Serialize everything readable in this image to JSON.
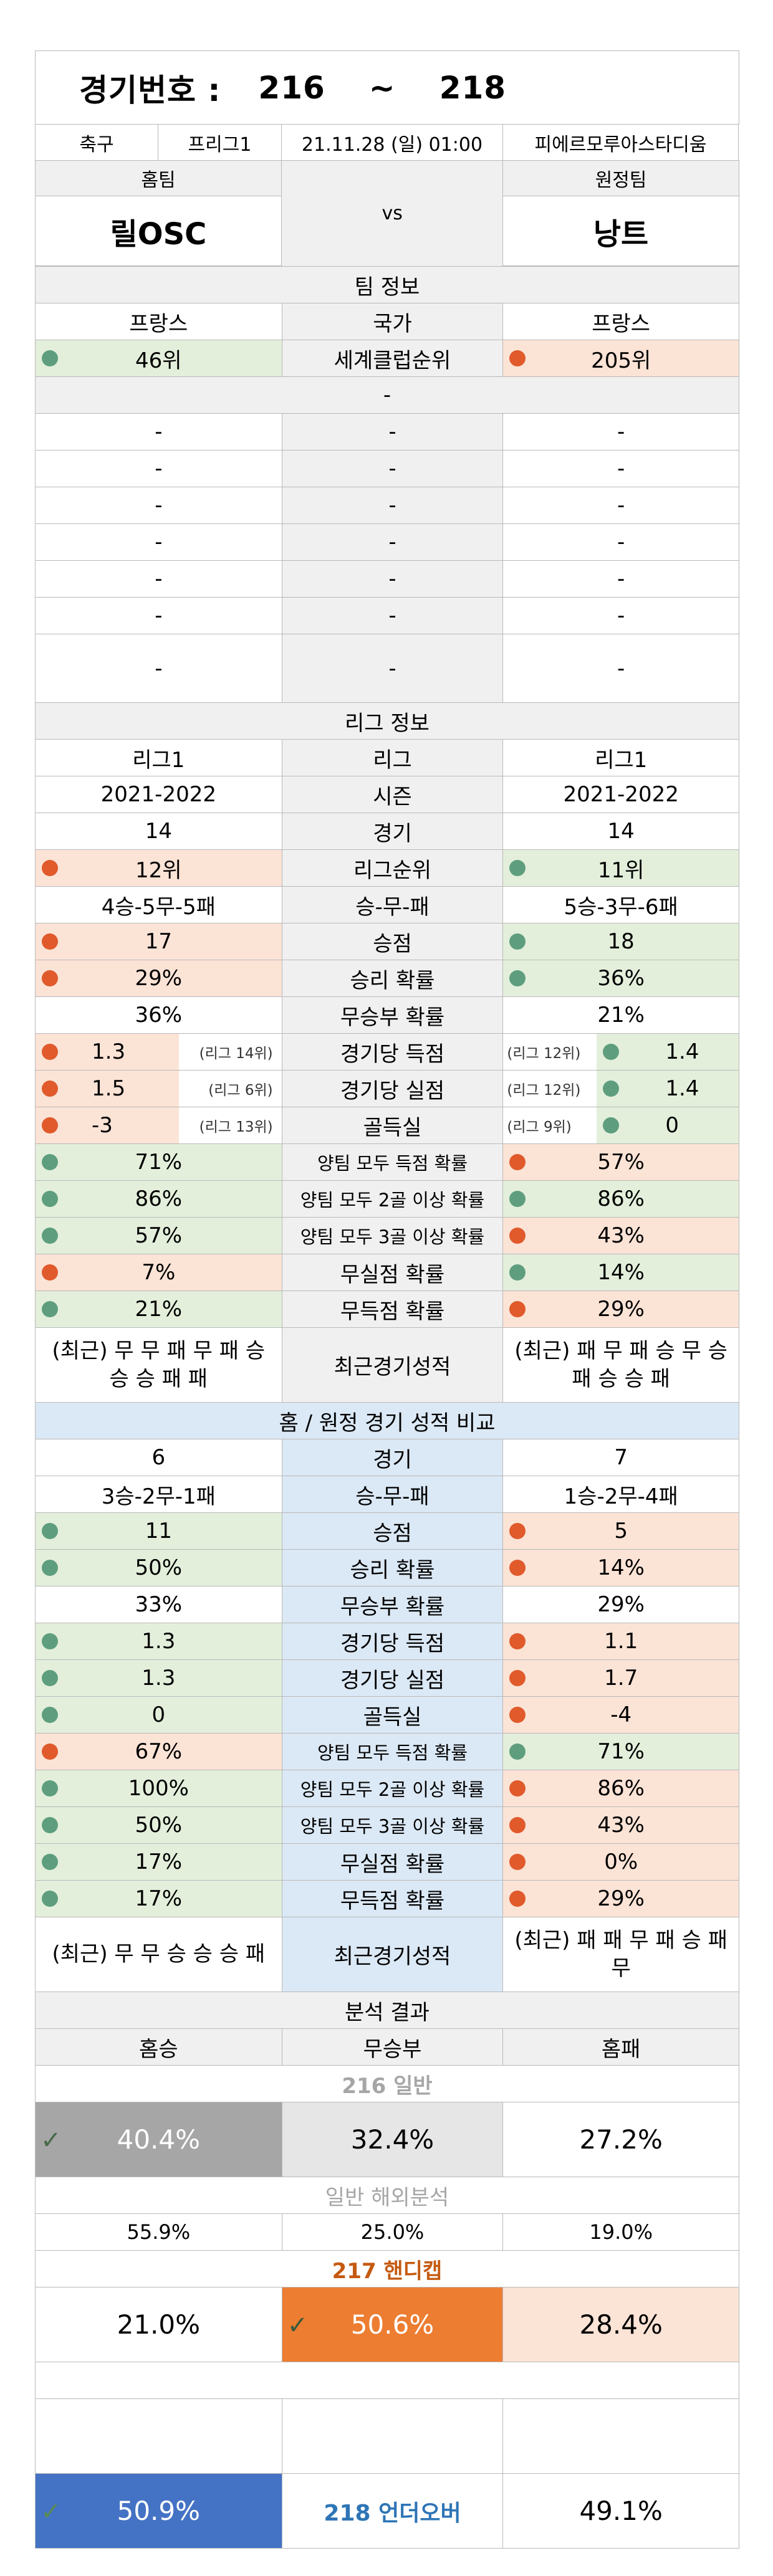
{
  "header": {
    "label": "경기번호 :",
    "from": "216",
    "sep": "~",
    "to": "218"
  },
  "match": {
    "sport": "축구",
    "league": "프리그1",
    "datetime": "21.11.28 (일) 01:00",
    "stadium": "피에르모루아스타디움"
  },
  "teams": {
    "home_label": "홈팀",
    "away_label": "원정팀",
    "home": "릴OSC",
    "vs": "vs",
    "away": "낭트"
  },
  "team_info": {
    "title": "팀 정보",
    "country_label": "국가",
    "home_country": "프랑스",
    "away_country": "프랑스",
    "rank_label": "세계클럽순위",
    "home_rank": "46위",
    "away_rank": "205위",
    "dash": "-"
  },
  "league_info": {
    "title": "리그 정보",
    "league_label": "리그",
    "home_league": "리그1",
    "away_league": "리그1",
    "season_label": "시즌",
    "home_season": "2021-2022",
    "away_season": "2021-2022",
    "games_label": "경기",
    "home_games": "14",
    "away_games": "14",
    "rank_label": "리그순위",
    "home_rank": "12위",
    "away_rank": "11위",
    "wdl_label": "승-무-패",
    "home_wdl": "4승-5무-5패",
    "away_wdl": "5승-3무-6패",
    "points_label": "승점",
    "home_points": "17",
    "away_points": "18",
    "winp_label": "승리 확률",
    "home_winp": "29%",
    "away_winp": "36%",
    "drawp_label": "무승부 확률",
    "home_drawp": "36%",
    "away_drawp": "21%",
    "gf_label": "경기당 득점",
    "home_gf": "1.3",
    "home_gf_rank": "(리그 14위)",
    "away_gf": "1.4",
    "away_gf_rank": "(리그 12위)",
    "ga_label": "경기당 실점",
    "home_ga": "1.5",
    "home_ga_rank": "(리그 6위)",
    "away_ga": "1.4",
    "away_ga_rank": "(리그 12위)",
    "gd_label": "골득실",
    "home_gd": "-3",
    "home_gd_rank": "(리그 13위)",
    "away_gd": "0",
    "away_gd_rank": "(리그 9위)",
    "btts_label": "양팀 모두 득점 확률",
    "home_btts": "71%",
    "away_btts": "57%",
    "btts2_label": "양팀 모두 2골 이상 확률",
    "home_btts2": "86%",
    "away_btts2": "86%",
    "btts3_label": "양팀 모두 3골 이상 확률",
    "home_btts3": "57%",
    "away_btts3": "43%",
    "cs_label": "무실점 확률",
    "home_cs": "7%",
    "away_cs": "14%",
    "fts_label": "무득점 확률",
    "home_fts": "21%",
    "away_fts": "29%",
    "recent_label": "최근경기성적",
    "home_recent": "(최근) 무 무 패 무 패 승 승 승 패 패",
    "away_recent": "(최근) 패 무 패 승 무 승 패 승 승 패"
  },
  "ha": {
    "title": "홈 / 원정 경기 성적 비교",
    "games_label": "경기",
    "home_games": "6",
    "away_games": "7",
    "wdl_label": "승-무-패",
    "home_wdl": "3승-2무-1패",
    "away_wdl": "1승-2무-4패",
    "points_label": "승점",
    "home_points": "11",
    "away_points": "5",
    "winp_label": "승리 확률",
    "home_winp": "50%",
    "away_winp": "14%",
    "drawp_label": "무승부 확률",
    "home_drawp": "33%",
    "away_drawp": "29%",
    "gf_label": "경기당 득점",
    "home_gf": "1.3",
    "away_gf": "1.1",
    "ga_label": "경기당 실점",
    "home_ga": "1.3",
    "away_ga": "1.7",
    "gd_label": "골득실",
    "home_gd": "0",
    "away_gd": "-4",
    "btts_label": "양팀 모두 득점 확률",
    "home_btts": "67%",
    "away_btts": "71%",
    "btts2_label": "양팀 모두 2골 이상 확률",
    "home_btts2": "100%",
    "away_btts2": "86%",
    "btts3_label": "양팀 모두 3골 이상 확률",
    "home_btts3": "50%",
    "away_btts3": "43%",
    "cs_label": "무실점 확률",
    "home_cs": "17%",
    "away_cs": "0%",
    "fts_label": "무득점 확률",
    "home_fts": "17%",
    "away_fts": "29%",
    "recent_label": "최근경기성적",
    "home_recent": "(최근) 무 무 승 승 승 패",
    "away_recent": "(최근) 패 패 무 패 승 패 무"
  },
  "analysis": {
    "title": "분석 결과",
    "home_win": "홈승",
    "draw": "무승부",
    "home_loss": "홈패",
    "g216_title": "216 일반",
    "g216_win": "40.4%",
    "g216_draw": "32.4%",
    "g216_loss": "27.2%",
    "overseas_title": "일반 해외분석",
    "ov_win": "55.9%",
    "ov_draw": "25.0%",
    "ov_loss": "19.0%",
    "g217_title": "217 핸디캡",
    "g217_win": "21.0%",
    "g217_draw": "50.6%",
    "g217_loss": "28.4%",
    "g218_under": "50.9%",
    "g218_title": "218 언더오버",
    "g218_over": "49.1%"
  },
  "colors": {
    "green_fill": "#e3efdb",
    "peach_fill": "#fbe3d6",
    "green_dot": "#5e9e7e",
    "orange_dot": "#e05a2b",
    "gray_fill": "#a6a6a6",
    "orange_fill": "#ed7d31",
    "blue_fill": "#4472c4",
    "orange_text": "#c55a11",
    "blue_text": "#2e75b6"
  }
}
